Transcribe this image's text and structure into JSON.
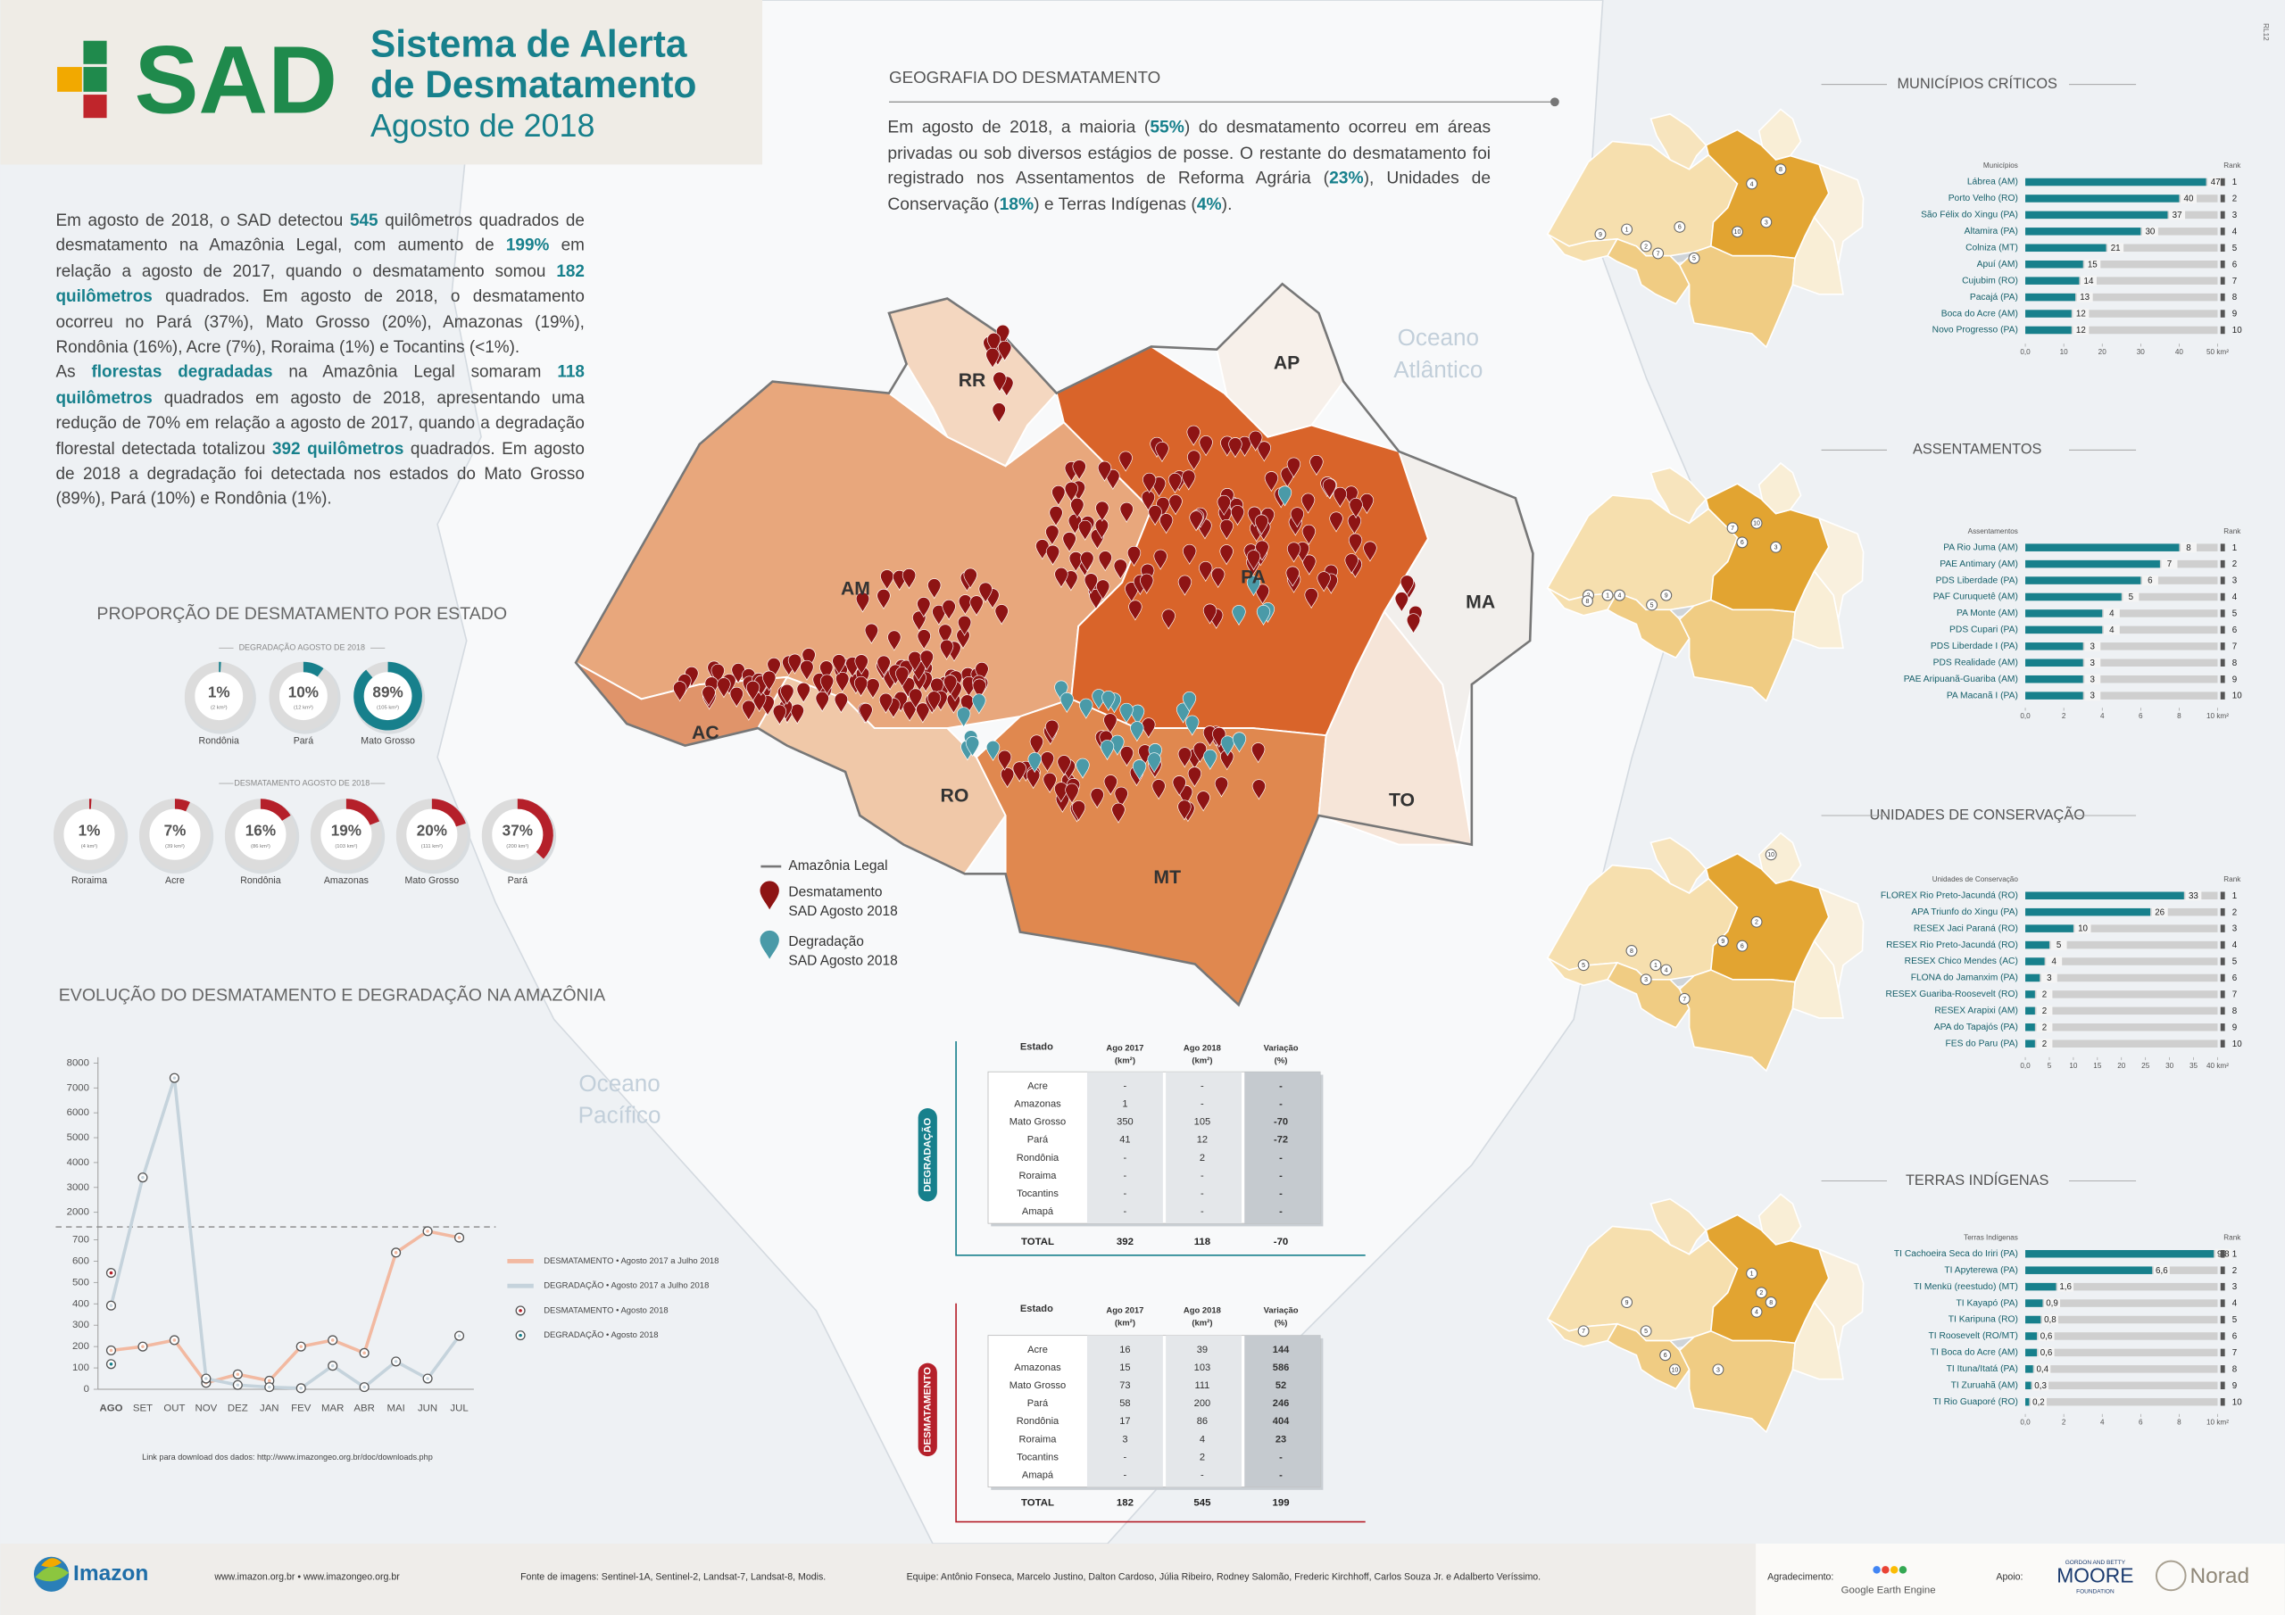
{
  "header": {
    "logo": "SAD",
    "title": [
      "Sistema de Alerta",
      "de Desmatamento"
    ],
    "subtitle": "Agosto de 2018",
    "edition": "RL12"
  },
  "intro": [
    [
      "Em agosto de 2018, o SAD detectou ",
      {
        "text": "545"
      },
      " quilômetros quadrados de desmatamento na Amazônia Legal, com aumento de ",
      {
        "text": "199%"
      },
      " em relação a agosto de 2017, quando o desmatamento somou ",
      {
        "text": "182 quilômetros"
      },
      " quadrados. Em agosto de 2018, o desmatamento ocorreu no Pará (37%), Mato Grosso (20%), Amazonas (19%), Rondônia (16%), Acre (7%), Roraima (1%) e Tocantins (<1%)."
    ],
    [
      "As ",
      {
        "text": "florestas degradadas"
      },
      " na Amazônia Legal somaram ",
      {
        "text": "118 quilômetros"
      },
      " quadrados em agosto de 2018, apresentando uma redução de 70% em relação a agosto de 2017, quando a degradação florestal detectada totalizou ",
      {
        "text": "392 quilômetros"
      },
      " quadrados. Em agosto de 2018 a degradação foi detectada nos estados do Mato Grosso (89%), Pará (10%) e Rondônia (1%)."
    ]
  ],
  "geography": {
    "title": "GEOGRAFIA DO DESMATAMENTO",
    "text": [
      "Em agosto de 2018, a maioria (",
      {
        "text": "55%"
      },
      ") do desmatamento ocorreu em áreas privadas ou sob diversos estágios de posse. O restante do desmatamento foi registrado nos Assentamentos de Reforma Agrária (",
      {
        "text": "23%"
      },
      "), Unidades de Conservação (",
      {
        "text": "18%"
      },
      ") e Terras Indígenas (",
      {
        "text": "4%"
      },
      ")."
    ]
  },
  "map": {
    "states": [
      "RR",
      "AP",
      "AM",
      "PA",
      "MA",
      "AC",
      "RO",
      "TO",
      "MT"
    ],
    "oceans": [
      [
        "Oceano",
        "Atlântico"
      ],
      [
        "Oceano",
        "Pacífico"
      ]
    ],
    "legend": {
      "limit": "Amazônia Legal",
      "deforestation": [
        "Desmatamento",
        "SAD Agosto 2018"
      ],
      "degradation": [
        "Degradação",
        "SAD Agosto 2018"
      ]
    }
  },
  "chart_data": [
    {
      "type": "donut",
      "title": "PROPORÇÃO DE DESMATAMENTO POR ESTADO",
      "subtitle": "DEGRADAÇÃO AGOSTO DE 2018",
      "categories": [
        "Rondônia",
        "Pará",
        "Mato Grosso"
      ],
      "values": [
        1,
        10,
        89
      ],
      "value_labels": [
        "1%",
        "10%",
        "89%"
      ],
      "area_labels": [
        "(2 km²)",
        "(12 km²)",
        "(105 km²)"
      ],
      "color": "#17808c"
    },
    {
      "type": "donut",
      "subtitle": "DESMATAMENTO AGOSTO DE 2018",
      "categories": [
        "Roraima",
        "Acre",
        "Rondônia",
        "Amazonas",
        "Mato Grosso",
        "Pará"
      ],
      "values": [
        1,
        7,
        16,
        19,
        20,
        37
      ],
      "value_labels": [
        "1%",
        "7%",
        "16%",
        "19%",
        "20%",
        "37%"
      ],
      "area_labels": [
        "(4 km²)",
        "(39 km²)",
        "(86 km²)",
        "(103 km²)",
        "(111 km²)",
        "(200 km²)"
      ],
      "color": "#b5202a"
    },
    {
      "type": "line",
      "title": "EVOLUÇÃO DO DESMATAMENTO E DEGRADAÇÃO NA AMAZÔNIA",
      "categories": [
        "AGO",
        "SET",
        "OUT",
        "NOV",
        "DEZ",
        "JAN",
        "FEV",
        "MAR",
        "ABR",
        "MAI",
        "JUN",
        "JUL"
      ],
      "series": [
        {
          "name": "DESMATAMENTO • Agosto 2017 a Julho 2018",
          "color": "#f2b9a1",
          "style": "line",
          "values": [
            182,
            200,
            230,
            30,
            70,
            40,
            200,
            230,
            170,
            640,
            740,
            710
          ]
        },
        {
          "name": "DEGRADAÇÃO • Agosto 2017 a Julho 2018",
          "color": "#c5d3dc",
          "style": "line",
          "values": [
            392,
            3400,
            7400,
            50,
            20,
            10,
            5,
            110,
            10,
            130,
            50,
            250
          ]
        },
        {
          "name": "DESMATAMENTO • Agosto 2018",
          "color": "#b5202a",
          "style": "marker",
          "values": [
            545,
            null,
            null,
            null,
            null,
            null,
            null,
            null,
            null,
            null,
            null,
            null
          ]
        },
        {
          "name": "DEGRADAÇÃO • Agosto 2018",
          "color": "#17808c",
          "style": "marker",
          "values": [
            118,
            null,
            null,
            null,
            null,
            null,
            null,
            null,
            null,
            null,
            null,
            null
          ]
        }
      ],
      "ylim": [
        0,
        8000
      ],
      "ybreak": [
        750,
        1500
      ],
      "yticks": [
        0,
        100,
        200,
        300,
        400,
        500,
        600,
        700,
        2000,
        3000,
        4000,
        5000,
        6000,
        7000,
        8000
      ],
      "note": "Link para download dos dados: http://www.imazongeo.org.br/doc/downloads.php"
    },
    {
      "type": "hbar",
      "title": "MUNICÍPIOS CRÍTICOS",
      "category_header": "Municípios",
      "rank_header": "Rank",
      "categories": [
        "Lábrea (AM)",
        "Porto Velho (RO)",
        "São Félix do Xingu (PA)",
        "Altamira (PA)",
        "Colniza (MT)",
        "Apuí (AM)",
        "Cujubim (RO)",
        "Pacajá (PA)",
        "Boca do Acre (AM)",
        "Novo Progresso (PA)"
      ],
      "values": [
        47,
        40,
        37,
        30,
        21,
        15,
        14,
        13,
        12,
        12
      ],
      "ranks": [
        1,
        2,
        3,
        4,
        5,
        6,
        7,
        8,
        9,
        10
      ],
      "color": "#17808c",
      "xlim": [
        0,
        50
      ],
      "xticks": [
        {
          "value": 0,
          "label": "0,0"
        },
        10,
        20,
        30,
        40,
        {
          "value": 50,
          "label": "50 km²"
        }
      ]
    },
    {
      "type": "hbar",
      "title": "ASSENTAMENTOS",
      "category_header": "Assentamentos",
      "rank_header": "Rank",
      "categories": [
        "PA Rio Juma (AM)",
        "PAE Antimary (AM)",
        "PDS Liberdade (PA)",
        "PAF Curuquetê (AM)",
        "PA Monte (AM)",
        "PDS Cupari (PA)",
        "PDS Liberdade I (PA)",
        "PDS Realidade (AM)",
        "PAE Aripuanã-Guariba (AM)",
        "PA Macanã I (PA)"
      ],
      "values": [
        8,
        7,
        6,
        5,
        4,
        4,
        3,
        3,
        3,
        3
      ],
      "ranks": [
        1,
        2,
        3,
        4,
        5,
        6,
        7,
        8,
        9,
        10
      ],
      "color": "#17808c",
      "xlim": [
        0,
        10
      ],
      "xticks": [
        {
          "value": 0,
          "label": "0,0"
        },
        2,
        4,
        6,
        8,
        {
          "value": 10,
          "label": "10 km²"
        }
      ]
    },
    {
      "type": "hbar",
      "title": "UNIDADES DE CONSERVAÇÃO",
      "category_header": "Unidades de Conservação",
      "rank_header": "Rank",
      "categories": [
        "FLOREX Rio Preto-Jacundá (RO)",
        "APA Triunfo do Xingu (PA)",
        "RESEX Jaci Paraná (RO)",
        "RESEX Rio Preto-Jacundá (RO)",
        "RESEX Chico Mendes (AC)",
        "FLONA do Jamanxim (PA)",
        "RESEX Guariba-Roosevelt (RO)",
        "RESEX Arapixi (AM)",
        "APA do Tapajós (PA)",
        "FES do Paru (PA)"
      ],
      "values": [
        33,
        26,
        10,
        5,
        4,
        3,
        2,
        2,
        2,
        2
      ],
      "ranks": [
        1,
        2,
        3,
        4,
        5,
        6,
        7,
        8,
        9,
        10
      ],
      "color": "#17808c",
      "xlim": [
        0,
        40
      ],
      "xticks": [
        {
          "value": 0,
          "label": "0,0"
        },
        5,
        10,
        15,
        20,
        25,
        30,
        35,
        {
          "value": 40,
          "label": "40 km²"
        }
      ]
    },
    {
      "type": "hbar",
      "title": "TERRAS INDÍGENAS",
      "category_header": "Terras Indígenas",
      "rank_header": "Rank",
      "categories": [
        "TI Cachoeira Seca do Iriri (PA)",
        "TI Apyterewa (PA)",
        "TI Menkü (reestudo) (MT)",
        "TI Kayapó (PA)",
        "TI Karipuna (RO)",
        "TI Roosevelt (RO/MT)",
        "TI Boca do Acre (AM)",
        "TI Ituna/Itatá (PA)",
        "TI Zuruahã (AM)",
        "TI Rio Guaporé (RO)"
      ],
      "values": [
        9.8,
        6.6,
        1.6,
        0.9,
        0.8,
        0.6,
        0.6,
        0.4,
        0.3,
        0.2
      ],
      "value_labels": [
        "9,8",
        "6,6",
        "1,6",
        "0,9",
        "0,8",
        "0,6",
        "0,6",
        "0,4",
        "0,3",
        "0,2"
      ],
      "ranks": [
        1,
        2,
        3,
        4,
        5,
        6,
        7,
        8,
        9,
        10
      ],
      "color": "#17808c",
      "xlim": [
        0,
        10
      ],
      "xticks": [
        {
          "value": 0,
          "label": "0,0"
        },
        2,
        4,
        6,
        8,
        {
          "value": 10,
          "label": "10 km²"
        }
      ]
    }
  ],
  "tables": [
    {
      "label": "DEGRADAÇÃO",
      "header": [
        "Estado",
        [
          "Ago 2017",
          "(km²)"
        ],
        [
          "Ago 2018",
          "(km²)"
        ],
        [
          "Variação",
          "(%)"
        ]
      ],
      "rows": [
        [
          "Acre",
          "-",
          "-",
          "-"
        ],
        [
          "Amazonas",
          1,
          "-",
          "-"
        ],
        [
          "Mato Grosso",
          350,
          105,
          -70
        ],
        [
          "Pará",
          41,
          12,
          -72
        ],
        [
          "Rondônia",
          "-",
          2,
          "-"
        ],
        [
          "Roraima",
          "-",
          "-",
          "-"
        ],
        [
          "Tocantins",
          "-",
          "-",
          "-"
        ],
        [
          "Amapá",
          "-",
          "-",
          "-"
        ]
      ],
      "total": [
        "TOTAL",
        392,
        118,
        -70
      ]
    },
    {
      "label": "DESMATAMENTO",
      "header": [
        "Estado",
        [
          "Ago 2017",
          "(km²)"
        ],
        [
          "Ago 2018",
          "(km²)"
        ],
        [
          "Variação",
          "(%)"
        ]
      ],
      "rows": [
        [
          "Acre",
          16,
          39,
          144
        ],
        [
          "Amazonas",
          15,
          103,
          586
        ],
        [
          "Mato Grosso",
          73,
          111,
          52
        ],
        [
          "Pará",
          58,
          200,
          246
        ],
        [
          "Rondônia",
          17,
          86,
          404
        ],
        [
          "Roraima",
          3,
          4,
          23
        ],
        [
          "Tocantins",
          "-",
          2,
          "-"
        ],
        [
          "Amapá",
          "-",
          "-",
          "-"
        ]
      ],
      "total": [
        "TOTAL",
        182,
        545,
        199
      ]
    }
  ],
  "footer": {
    "brand": "Imazon",
    "sites": "www.imazon.org.br • www.imazongeo.org.br",
    "sources": "Fonte de imagens: Sentinel-1A, Sentinel-2, Landsat-7, Landsat-8, Modis.",
    "team": "Equipe: Antônio Fonseca, Marcelo Justino, Dalton Cardoso, Júlia Ribeiro, Rodney Salomão, Frederic Kirchhoff, Carlos Souza Jr. e Adalberto Veríssimo.",
    "thanks": "Agradecimento:",
    "thanks_partner": "Google Earth Engine",
    "support": "Apoio:",
    "moore": [
      "GORDON AND BETTY",
      "MOORE",
      "FOUNDATION"
    ],
    "norad": "Norad"
  }
}
